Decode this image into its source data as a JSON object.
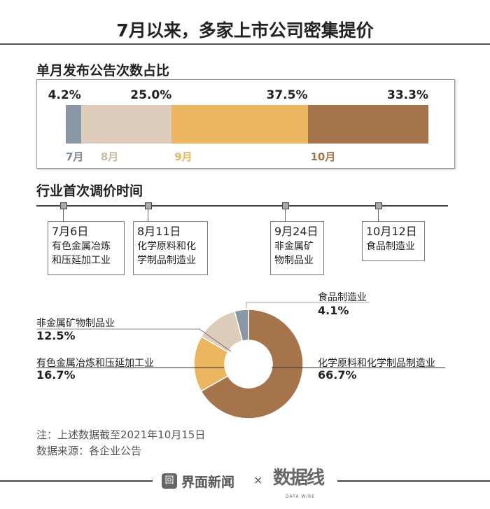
{
  "title": "7月以来，多家上市公司密集提价",
  "bar_section": {
    "title": "单月发布公告次数占比"
  },
  "timeline_section": {
    "title": "行业首次调价时间",
    "events": [
      {
        "date": "7月6日",
        "line1": "有色金属冶炼",
        "line2": "和压延加工业"
      },
      {
        "date": "8月11日",
        "line1": "化学原料和化",
        "line2": "学制品制造业"
      },
      {
        "date": "9月24日",
        "line1": "非金属矿",
        "line2": "物制品业"
      },
      {
        "date": "10月12日",
        "line1": "食品制造业",
        "line2": ""
      }
    ]
  },
  "chart_data": [
    {
      "type": "bar",
      "orientation": "horizontal-stacked",
      "title": "单月发布公告次数占比",
      "categories": [
        "7月",
        "8月",
        "9月",
        "10月"
      ],
      "values": [
        4.2,
        25.0,
        37.5,
        33.3
      ],
      "labels": [
        "4.2%",
        "25.0%",
        "37.5%",
        "33.3%"
      ],
      "colors": [
        "#8a97a5",
        "#ddccb9",
        "#ecb55f",
        "#a5744a"
      ]
    },
    {
      "type": "pie",
      "variant": "donut",
      "categories": [
        "化学原料和化学制品制造业",
        "有色金属冶炼和压延加工业",
        "非金属矿物制品业",
        "食品制造业"
      ],
      "values": [
        66.7,
        16.7,
        12.5,
        4.1
      ],
      "labels": [
        "66.7%",
        "16.7%",
        "12.5%",
        "4.1%"
      ],
      "colors": [
        "#a5744a",
        "#ecb55f",
        "#ddccb9",
        "#8a97a5"
      ]
    }
  ],
  "notes": {
    "line1": "注：上述数据截至2021年10月15日",
    "line2": "数据来源：各企业公告"
  },
  "footer": {
    "brand1": "界面新闻",
    "sep": "×",
    "brand2": "数据线",
    "brand2_sub": "DATA WIRE"
  }
}
